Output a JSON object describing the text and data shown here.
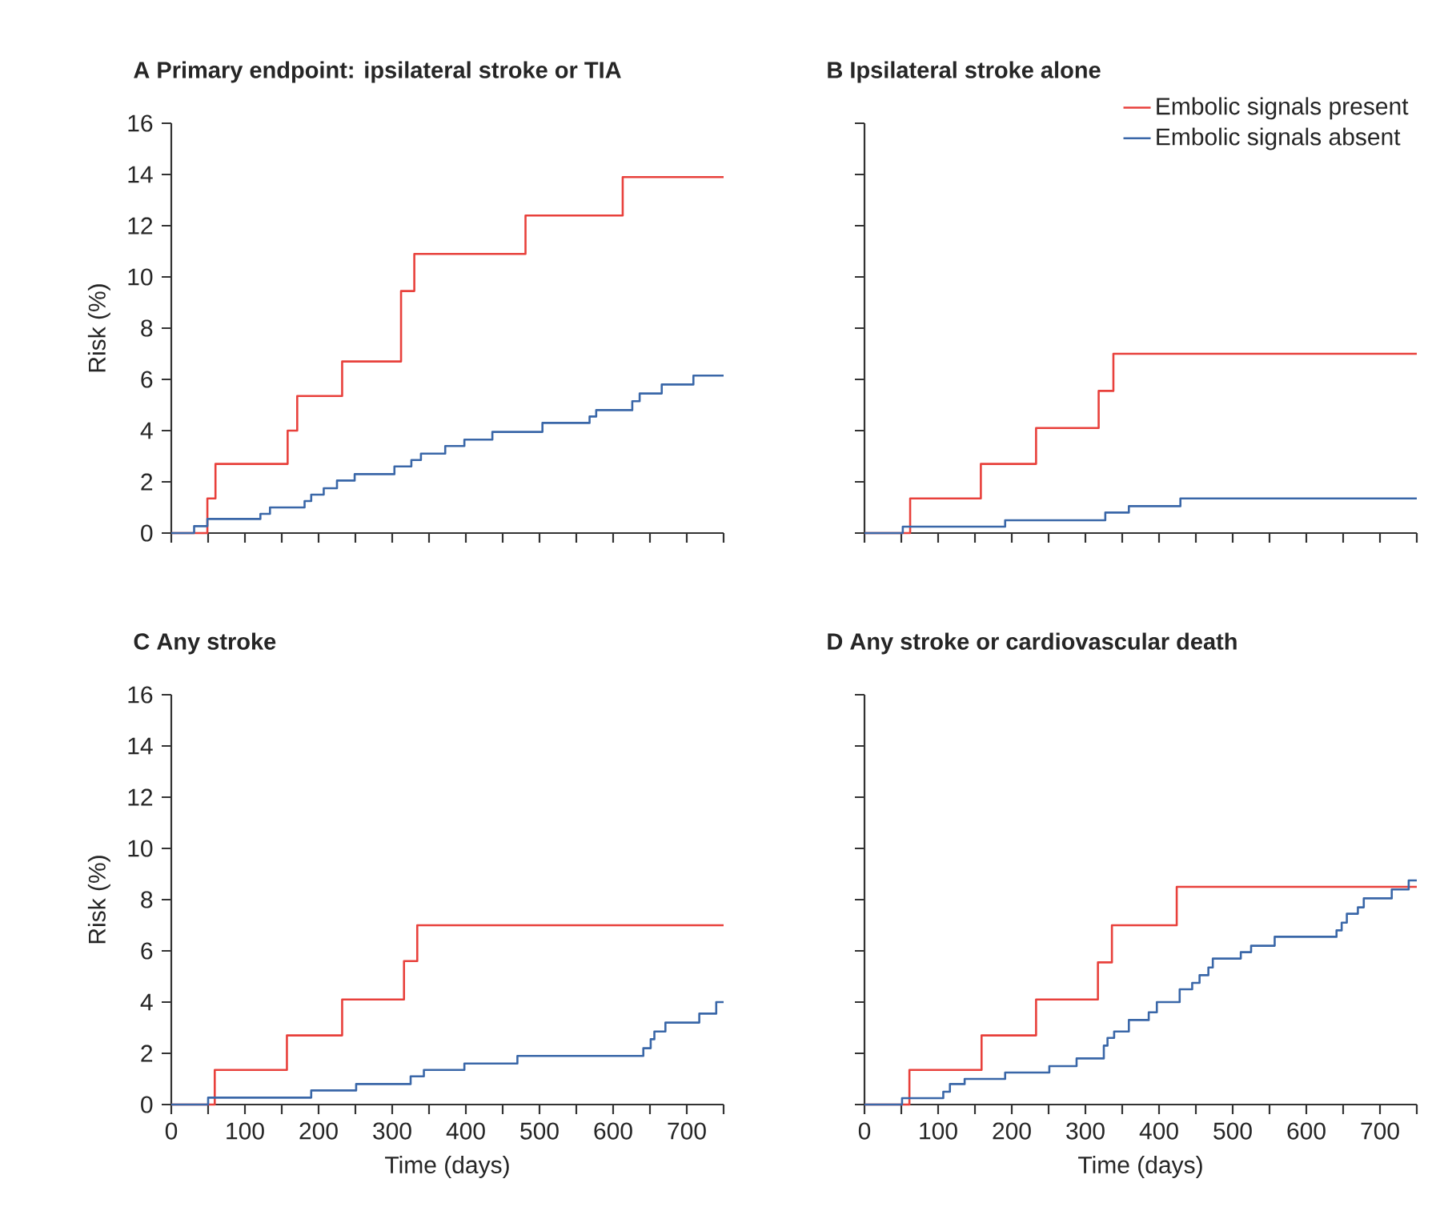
{
  "chart_data": [
    {
      "type": "step",
      "title": "A   Primary endpoint: ipsilateral stroke or TIA",
      "ylabel": "Risk (%)",
      "xlim": [
        0,
        750
      ],
      "ylim": [
        0,
        16
      ],
      "xticks": [
        0,
        {
          "value": 50,
          "label": null
        },
        100,
        {
          "value": 150,
          "label": null
        },
        200,
        {
          "value": 250,
          "label": null
        },
        300,
        {
          "value": 350,
          "label": null
        },
        400,
        {
          "value": 450,
          "label": null
        },
        500,
        {
          "value": 550,
          "label": null
        },
        600,
        {
          "value": 650,
          "label": null
        },
        700,
        {
          "value": 750,
          "label": null
        }
      ],
      "yticks": [
        0,
        2,
        4,
        6,
        8,
        10,
        12,
        14,
        16
      ],
      "tick_labels": "y",
      "series": [
        {
          "color": "#e8413c",
          "x": [
            0,
            49,
            60,
            158,
            171,
            232,
            312,
            330,
            481,
            613,
            750
          ],
          "values": [
            0,
            1.35,
            2.7,
            4.0,
            5.35,
            6.7,
            9.45,
            10.9,
            12.4,
            13.9,
            13.9
          ]
        },
        {
          "color": "#3a67a8",
          "x": [
            0,
            31,
            49,
            121,
            134,
            181,
            190,
            207,
            225,
            249,
            303,
            326,
            339,
            372,
            398,
            436,
            504,
            568,
            577,
            626,
            636,
            666,
            709,
            750
          ],
          "values": [
            0,
            0.27,
            0.55,
            0.75,
            1.0,
            1.25,
            1.5,
            1.75,
            2.05,
            2.3,
            2.6,
            2.85,
            3.1,
            3.4,
            3.65,
            3.95,
            4.3,
            4.55,
            4.8,
            5.15,
            5.45,
            5.8,
            6.15,
            6.15
          ]
        }
      ]
    },
    {
      "type": "step",
      "title": "B   Ipsilateral stroke alone",
      "xlim": [
        0,
        750
      ],
      "ylim": [
        0,
        16
      ],
      "xticks": [
        0,
        {
          "value": 50,
          "label": null
        },
        100,
        {
          "value": 150,
          "label": null
        },
        200,
        {
          "value": 250,
          "label": null
        },
        300,
        {
          "value": 350,
          "label": null
        },
        400,
        {
          "value": 450,
          "label": null
        },
        500,
        {
          "value": 550,
          "label": null
        },
        600,
        {
          "value": 650,
          "label": null
        },
        700,
        {
          "value": 750,
          "label": null
        }
      ],
      "yticks": [
        0,
        2,
        4,
        6,
        8,
        10,
        12,
        14,
        16
      ],
      "tick_labels": false,
      "legend": "top right",
      "series": [
        {
          "name": "Embolic signals present",
          "color": "#e8413c",
          "x": [
            0,
            62,
            158,
            233,
            318,
            338,
            750
          ],
          "values": [
            0,
            1.35,
            2.7,
            4.1,
            5.55,
            7.0,
            7.0
          ]
        },
        {
          "name": "Embolic signals absent",
          "color": "#3a67a8",
          "x": [
            0,
            52,
            191,
            327,
            359,
            429,
            750
          ],
          "values": [
            0,
            0.25,
            0.5,
            0.8,
            1.05,
            1.35,
            1.35
          ]
        }
      ]
    },
    {
      "type": "step",
      "title": "C   Any stroke",
      "xlabel": "Time (days)",
      "ylabel": "Risk (%)",
      "xlim": [
        0,
        750
      ],
      "ylim": [
        0,
        16
      ],
      "xticks": [
        0,
        {
          "value": 50,
          "label": null
        },
        100,
        {
          "value": 150,
          "label": null
        },
        200,
        {
          "value": 250,
          "label": null
        },
        300,
        {
          "value": 350,
          "label": null
        },
        400,
        {
          "value": 450,
          "label": null
        },
        500,
        {
          "value": 550,
          "label": null
        },
        600,
        {
          "value": 650,
          "label": null
        },
        700,
        {
          "value": 750,
          "label": null
        }
      ],
      "yticks": [
        0,
        2,
        4,
        6,
        8,
        10,
        12,
        14,
        16
      ],
      "series": [
        {
          "color": "#e8413c",
          "x": [
            0,
            59,
            157,
            232,
            316,
            334,
            750
          ],
          "values": [
            0,
            1.35,
            2.7,
            4.1,
            5.6,
            7.0,
            7.0
          ]
        },
        {
          "color": "#3a67a8",
          "x": [
            0,
            50,
            190,
            251,
            325,
            343,
            398,
            470,
            641,
            651,
            656,
            671,
            717,
            740,
            750
          ],
          "values": [
            0,
            0.27,
            0.55,
            0.8,
            1.1,
            1.35,
            1.6,
            1.9,
            2.2,
            2.55,
            2.85,
            3.2,
            3.55,
            4.0,
            4.0
          ]
        }
      ]
    },
    {
      "type": "step",
      "title": "D   Any stroke or cardiovascular death",
      "xlabel": "Time (days)",
      "xlim": [
        0,
        750
      ],
      "ylim": [
        0,
        16
      ],
      "xticks": [
        0,
        {
          "value": 50,
          "label": null
        },
        100,
        {
          "value": 150,
          "label": null
        },
        200,
        {
          "value": 250,
          "label": null
        },
        300,
        {
          "value": 350,
          "label": null
        },
        400,
        {
          "value": 450,
          "label": null
        },
        500,
        {
          "value": 550,
          "label": null
        },
        600,
        {
          "value": 650,
          "label": null
        },
        700,
        {
          "value": 750,
          "label": null
        }
      ],
      "yticks": [
        0,
        2,
        4,
        6,
        8,
        10,
        12,
        14,
        16
      ],
      "tick_labels": "x",
      "series": [
        {
          "color": "#e8413c",
          "x": [
            0,
            61,
            159,
            233,
            317,
            336,
            424,
            750
          ],
          "values": [
            0,
            1.35,
            2.7,
            4.1,
            5.55,
            7.0,
            8.5,
            8.5
          ]
        },
        {
          "color": "#3a67a8",
          "x": [
            0,
            51,
            107,
            116,
            136,
            191,
            251,
            288,
            325,
            330,
            339,
            359,
            386,
            397,
            428,
            445,
            455,
            467,
            473,
            511,
            525,
            557,
            641,
            648,
            655,
            670,
            678,
            716,
            739,
            750
          ],
          "values": [
            0,
            0.25,
            0.5,
            0.8,
            1.0,
            1.25,
            1.5,
            1.8,
            2.3,
            2.6,
            2.85,
            3.3,
            3.6,
            4.0,
            4.5,
            4.75,
            5.05,
            5.35,
            5.7,
            5.95,
            6.2,
            6.55,
            6.8,
            7.1,
            7.45,
            7.7,
            8.05,
            8.4,
            8.75,
            8.75
          ]
        }
      ]
    }
  ]
}
